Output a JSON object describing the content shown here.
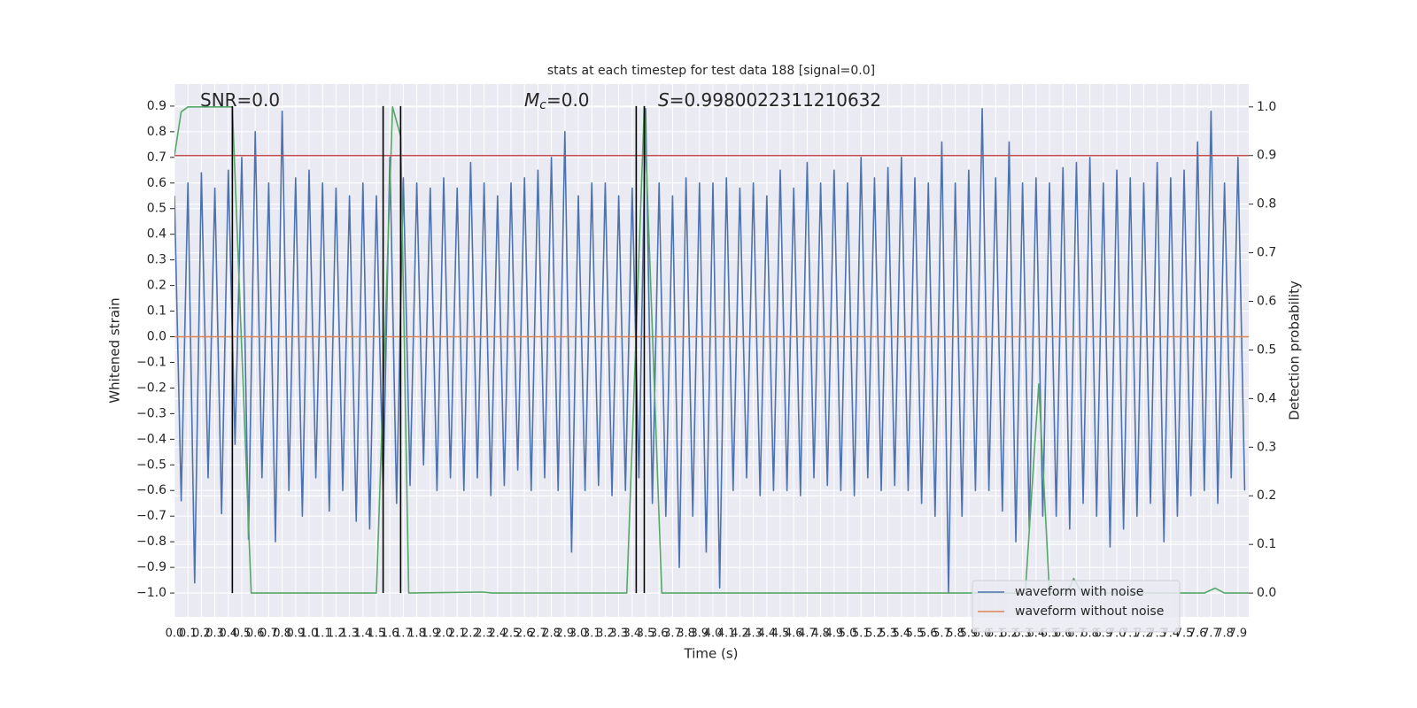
{
  "chart_data": {
    "type": "line",
    "title": "stats at each timestep for test data 188 [signal=0.0]",
    "x_label": "Time (s)",
    "y_label": "Whitened strain",
    "y2_label": "Detection probability",
    "grid": true,
    "legend": "lower right",
    "xlim": [
      0,
      7.98
    ],
    "ylim": [
      -1.093,
      0.986
    ],
    "y2lim": [
      -0.049,
      1.047
    ],
    "xticks": [
      {
        "value": 0,
        "label": "0.0"
      },
      0.1,
      0.2,
      0.3,
      0.4,
      0.5,
      0.6,
      0.7,
      0.8,
      0.9,
      {
        "value": 1,
        "label": "1.0"
      },
      1.1,
      1.2,
      1.3,
      1.4,
      1.5,
      1.6,
      1.7,
      1.8,
      1.9,
      {
        "value": 2,
        "label": "2.0"
      },
      2.1,
      2.2,
      2.3,
      2.4,
      2.5,
      2.6,
      2.7,
      2.8,
      2.9,
      {
        "value": 3,
        "label": "3.0"
      },
      3.1,
      3.2,
      3.3,
      3.4,
      3.5,
      3.6,
      3.7,
      3.8,
      3.9,
      {
        "value": 4,
        "label": "4.0"
      },
      4.1,
      4.2,
      4.3,
      4.4,
      4.5,
      4.6,
      4.7,
      4.8,
      4.9,
      {
        "value": 5,
        "label": "5.0"
      },
      5.1,
      5.2,
      5.3,
      5.4,
      5.5,
      5.6,
      5.7,
      5.8,
      5.9,
      {
        "value": 6,
        "label": "6.0"
      },
      6.1,
      6.2,
      6.3,
      6.4,
      6.5,
      6.6,
      6.7,
      6.8,
      6.9,
      {
        "value": 7,
        "label": "7.0"
      },
      7.1,
      7.2,
      7.3,
      7.4,
      7.5,
      7.6,
      7.7,
      7.8,
      7.9
    ],
    "yticks": [
      {
        "value": -1.0,
        "label": "−1.0"
      },
      {
        "value": -0.9,
        "label": "−0.9"
      },
      {
        "value": -0.8,
        "label": "−0.8"
      },
      {
        "value": -0.7,
        "label": "−0.7"
      },
      {
        "value": -0.6,
        "label": "−0.6"
      },
      {
        "value": -0.5,
        "label": "−0.5"
      },
      {
        "value": -0.4,
        "label": "−0.4"
      },
      {
        "value": -0.3,
        "label": "−0.3"
      },
      {
        "value": -0.2,
        "label": "−0.2"
      },
      {
        "value": -0.1,
        "label": "−0.1"
      },
      {
        "value": 0,
        "label": "0.0"
      },
      0.1,
      0.2,
      0.3,
      0.4,
      0.5,
      0.6,
      0.7,
      0.8,
      0.9
    ],
    "y2ticks": [
      {
        "value": 0,
        "label": "0.0"
      },
      0.1,
      0.2,
      0.3,
      0.4,
      0.5,
      0.6,
      0.7,
      0.8,
      0.9,
      {
        "value": 1,
        "label": "1.0"
      }
    ],
    "annotations": [
      {
        "text": "SNR=0.0"
      },
      {
        "symbol": "M",
        "subscript": "c",
        "text": "=0.0"
      },
      {
        "symbol": "S",
        "text": "=0.9980022311210632"
      }
    ],
    "vlines": {
      "x": [
        0.43,
        1.55,
        1.68,
        3.43,
        3.49
      ],
      "ymin": -1.0,
      "ymax": 0.9,
      "color": "#000000"
    },
    "threshold": {
      "value": 0.9,
      "axis": "y2",
      "color": "#c44e52"
    },
    "series": [
      {
        "name": "waveform with noise",
        "color": "#4c72b0",
        "x": [
          0,
          0.05,
          0.1,
          0.15,
          0.2,
          0.25,
          0.3,
          0.35,
          0.4,
          0.45,
          0.5,
          0.55,
          0.6,
          0.65,
          0.7,
          0.75,
          0.8,
          0.85,
          0.9,
          0.95,
          1,
          1.05,
          1.1,
          1.15,
          1.2,
          1.25,
          1.3,
          1.35,
          1.4,
          1.45,
          1.5,
          1.55,
          1.6,
          1.65,
          1.7,
          1.75,
          1.8,
          1.85,
          1.9,
          1.95,
          2,
          2.05,
          2.1,
          2.15,
          2.2,
          2.25,
          2.3,
          2.35,
          2.4,
          2.45,
          2.5,
          2.55,
          2.6,
          2.65,
          2.7,
          2.75,
          2.8,
          2.85,
          2.9,
          2.95,
          3,
          3.05,
          3.1,
          3.15,
          3.2,
          3.25,
          3.3,
          3.35,
          3.4,
          3.45,
          3.5,
          3.55,
          3.6,
          3.65,
          3.7,
          3.75,
          3.8,
          3.85,
          3.9,
          3.95,
          4,
          4.05,
          4.1,
          4.15,
          4.2,
          4.25,
          4.3,
          4.35,
          4.4,
          4.45,
          4.5,
          4.55,
          4.6,
          4.65,
          4.7,
          4.75,
          4.8,
          4.85,
          4.9,
          4.95,
          5,
          5.05,
          5.1,
          5.15,
          5.2,
          5.25,
          5.3,
          5.35,
          5.4,
          5.45,
          5.5,
          5.55,
          5.6,
          5.65,
          5.7,
          5.75,
          5.8,
          5.85,
          5.9,
          5.95,
          6,
          6.05,
          6.1,
          6.15,
          6.2,
          6.25,
          6.3,
          6.35,
          6.4,
          6.45,
          6.5,
          6.55,
          6.6,
          6.65,
          6.7,
          6.75,
          6.8,
          6.85,
          6.9,
          6.95,
          7,
          7.05,
          7.1,
          7.15,
          7.2,
          7.25,
          7.3,
          7.35,
          7.4,
          7.45,
          7.5,
          7.55,
          7.6,
          7.65,
          7.7,
          7.75,
          7.8,
          7.85,
          7.9,
          7.95
        ],
        "values": [
          0.55,
          -0.64,
          0.6,
          -0.96,
          0.64,
          -0.55,
          0.58,
          -0.69,
          0.65,
          -0.42,
          0.7,
          -0.79,
          0.8,
          -0.55,
          0.6,
          -0.8,
          0.88,
          -0.6,
          0.62,
          -0.7,
          0.65,
          -0.55,
          0.6,
          -0.68,
          0.58,
          -0.6,
          0.55,
          -0.72,
          0.6,
          -0.75,
          0.55,
          -0.6,
          0.7,
          -0.65,
          0.62,
          -0.58,
          0.6,
          -0.5,
          0.58,
          -0.6,
          0.62,
          -0.55,
          0.58,
          -0.6,
          0.68,
          -0.55,
          0.6,
          -0.62,
          0.55,
          -0.58,
          0.6,
          -0.52,
          0.62,
          -0.6,
          0.65,
          -0.55,
          0.7,
          -0.6,
          0.8,
          -0.84,
          0.55,
          -0.6,
          0.6,
          -0.58,
          0.6,
          -0.62,
          0.55,
          -0.6,
          0.58,
          -0.55,
          0.89,
          -0.65,
          0.6,
          -0.7,
          0.55,
          -0.9,
          0.62,
          -0.7,
          0.6,
          -0.84,
          0.6,
          -0.98,
          0.62,
          -0.6,
          0.58,
          -0.55,
          0.6,
          -0.62,
          0.55,
          -0.6,
          0.65,
          -0.6,
          0.58,
          -0.62,
          0.68,
          -0.55,
          0.6,
          -0.58,
          0.65,
          -0.6,
          0.6,
          -0.62,
          0.7,
          -0.55,
          0.62,
          -0.6,
          0.66,
          -0.58,
          0.7,
          -0.6,
          0.62,
          -0.65,
          0.6,
          -0.7,
          0.76,
          -1.0,
          0.6,
          -0.7,
          0.65,
          -0.6,
          0.89,
          -0.6,
          0.62,
          -0.68,
          0.76,
          -0.8,
          0.6,
          -0.75,
          0.62,
          -0.7,
          0.6,
          -0.7,
          0.66,
          -0.75,
          0.68,
          -0.65,
          0.7,
          -0.7,
          0.6,
          -0.82,
          0.65,
          -0.75,
          0.62,
          -0.7,
          0.6,
          -0.65,
          0.68,
          -0.8,
          0.62,
          -0.7,
          0.65,
          -0.62,
          0.76,
          -0.6,
          0.88,
          -0.65,
          0.6,
          -0.55,
          0.7,
          -0.6
        ]
      },
      {
        "name": "waveform without noise",
        "color": "#dd8452",
        "x": [
          0,
          7.98
        ],
        "values": [
          0,
          0
        ]
      },
      {
        "color": "#55a868",
        "axis": "y2",
        "x": [
          0,
          0.05,
          0.1,
          0.43,
          0.57,
          1.5,
          1.62,
          1.68,
          1.74,
          2.29,
          2.36,
          3.36,
          3.49,
          3.62,
          6.32,
          6.42,
          6.5,
          6.63,
          6.68,
          6.74,
          7.65,
          7.73,
          7.8,
          7.98
        ],
        "values": [
          0.9,
          0.99,
          1.0,
          1.0,
          0,
          0,
          1.0,
          0.94,
          0,
          0.002,
          0,
          0,
          1.0,
          0,
          0,
          0.43,
          0,
          0,
          0.03,
          0,
          0,
          0.01,
          0,
          0
        ]
      }
    ]
  }
}
